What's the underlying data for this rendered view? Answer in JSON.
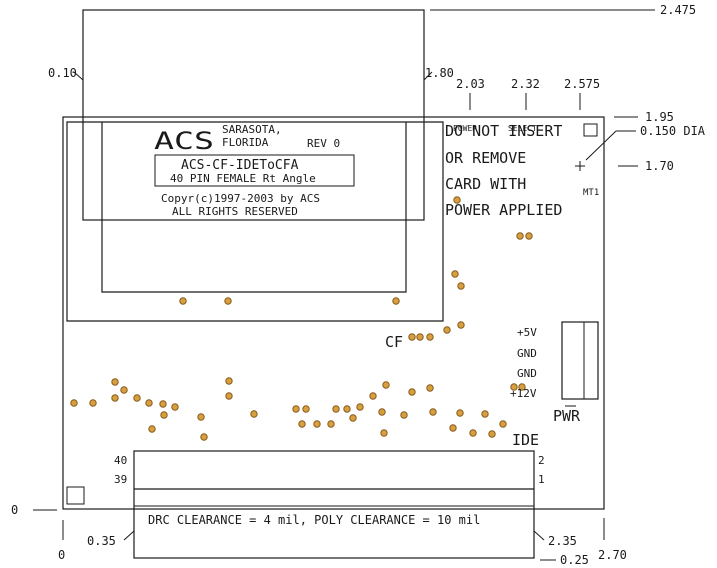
{
  "dimensions": {
    "top": "2.475",
    "left_pin": "0.10",
    "right_pin": "1.80",
    "power_x": "2.03",
    "select_x": "2.32",
    "corner_x": "2.575",
    "y_1_95": "1.95",
    "hole_dia": "0.150 DIA",
    "y_1_70": "1.70",
    "origin_y": "0",
    "origin_x": "0",
    "x_0_35": "0.35",
    "x_2_35": "2.35",
    "y_0_25": "0.25",
    "x_2_70": "2.70"
  },
  "silkscreen": {
    "logo": "ACS",
    "city": "SARASOTA,",
    "state": "FLORIDA",
    "rev": "REV 0",
    "part_number": "ACS-CF-IDEToCFA",
    "connector_desc": "40 PIN FEMALE Rt Angle",
    "copyright": "Copyr(c)1997-2003 by ACS",
    "rights": "ALL RIGHTS RESERVED",
    "warning": [
      "DO NOT INSERT",
      "OR REMOVE",
      "CARD WITH",
      "POWER APPLIED"
    ],
    "led_power": "POWER",
    "led_select": "SELECT",
    "mt1": "MT1",
    "cf": "CF",
    "power_pins": [
      "+5V",
      "GND",
      "GND",
      "+12V"
    ],
    "pwr": "PWR",
    "ide": "IDE",
    "pin_40": "40",
    "pin_39": "39",
    "pin_2": "2",
    "pin_1": "1",
    "clearance_note": "DRC CLEARANCE = 4 mil, POLY CLEARANCE = 10 mil"
  },
  "icons": [
    "mounting-hole-cross-icon"
  ]
}
